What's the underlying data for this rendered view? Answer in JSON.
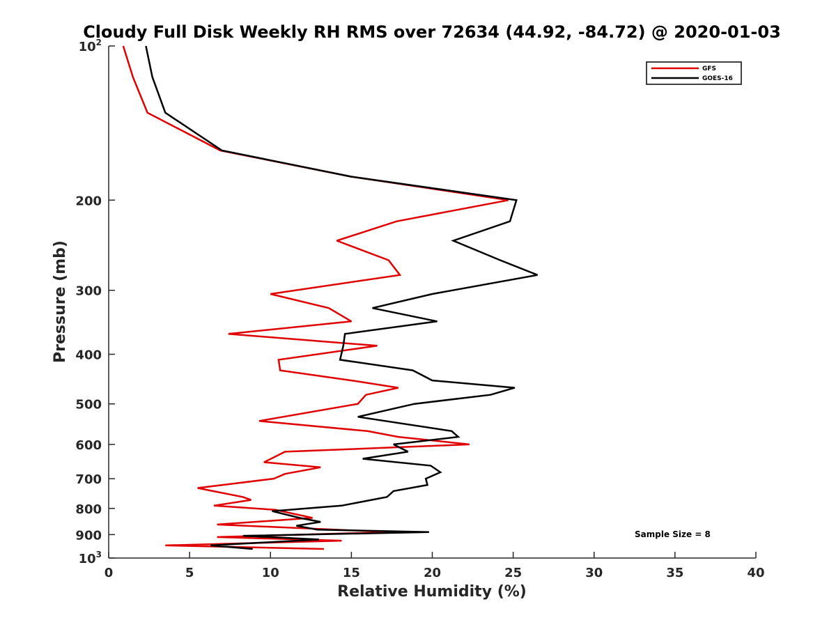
{
  "chart_data": {
    "type": "line",
    "title": "Cloudy Full Disk Weekly RH RMS over 72634 (44.92, -84.72) @ 2020-01-03",
    "xlabel": "Relative Humidity (%)",
    "ylabel": "Pressure (mb)",
    "xlim": [
      0,
      40
    ],
    "ylim": [
      100,
      1000
    ],
    "y_scale": "log",
    "y_reversed": true,
    "grid": false,
    "legend_position": "top-right",
    "x_ticks": [
      "0",
      "5",
      "10",
      "15",
      "20",
      "25",
      "30",
      "35",
      "40"
    ],
    "y_ticks": [
      {
        "value": 100,
        "base": "10",
        "exp": "2"
      },
      {
        "value": 200,
        "label": "200"
      },
      {
        "value": 300,
        "label": "300"
      },
      {
        "value": 400,
        "label": "400"
      },
      {
        "value": 500,
        "label": "500"
      },
      {
        "value": 600,
        "label": "600"
      },
      {
        "value": 700,
        "label": "700"
      },
      {
        "value": 800,
        "label": "800"
      },
      {
        "value": 900,
        "label": "900"
      },
      {
        "value": 1000,
        "base": "10",
        "exp": "3"
      }
    ],
    "annotation": "Sample Size = 8",
    "series": [
      {
        "name": "GFS",
        "color": "#e00000",
        "points": [
          [
            0.9,
            100
          ],
          [
            1.5,
            115
          ],
          [
            2.4,
            135
          ],
          [
            6.9,
            160
          ],
          [
            15.0,
            180
          ],
          [
            24.7,
            200
          ],
          [
            17.8,
            220
          ],
          [
            14.1,
            240
          ],
          [
            17.3,
            262
          ],
          [
            18.0,
            280
          ],
          [
            10.0,
            305
          ],
          [
            13.6,
            325
          ],
          [
            15.0,
            345
          ],
          [
            7.4,
            365
          ],
          [
            16.6,
            385
          ],
          [
            10.5,
            410
          ],
          [
            10.6,
            430
          ],
          [
            15.0,
            450
          ],
          [
            17.9,
            465
          ],
          [
            15.9,
            480
          ],
          [
            15.4,
            500
          ],
          [
            9.3,
            540
          ],
          [
            16.0,
            565
          ],
          [
            17.9,
            580
          ],
          [
            22.3,
            600
          ],
          [
            10.9,
            620
          ],
          [
            9.6,
            650
          ],
          [
            13.1,
            665
          ],
          [
            10.9,
            685
          ],
          [
            10.2,
            700
          ],
          [
            5.5,
            730
          ],
          [
            8.3,
            760
          ],
          [
            8.8,
            770
          ],
          [
            6.5,
            790
          ],
          [
            10.3,
            805
          ],
          [
            12.6,
            835
          ],
          [
            6.7,
            860
          ],
          [
            17.5,
            890
          ],
          [
            6.7,
            910
          ],
          [
            14.4,
            925
          ],
          [
            3.5,
            945
          ],
          [
            13.3,
            960
          ]
        ]
      },
      {
        "name": "GOES-16",
        "color": "#000000",
        "points": [
          [
            2.3,
            100
          ],
          [
            2.7,
            115
          ],
          [
            3.5,
            135
          ],
          [
            7.0,
            160
          ],
          [
            15.0,
            180
          ],
          [
            25.2,
            200
          ],
          [
            24.8,
            220
          ],
          [
            21.3,
            240
          ],
          [
            24.2,
            262
          ],
          [
            26.5,
            280
          ],
          [
            20.0,
            305
          ],
          [
            16.3,
            325
          ],
          [
            20.3,
            345
          ],
          [
            14.6,
            365
          ],
          [
            14.5,
            385
          ],
          [
            14.3,
            410
          ],
          [
            18.8,
            430
          ],
          [
            20.0,
            450
          ],
          [
            25.1,
            465
          ],
          [
            23.6,
            480
          ],
          [
            18.9,
            500
          ],
          [
            15.4,
            530
          ],
          [
            21.2,
            565
          ],
          [
            21.6,
            580
          ],
          [
            17.6,
            600
          ],
          [
            18.5,
            620
          ],
          [
            15.7,
            640
          ],
          [
            19.9,
            660
          ],
          [
            20.5,
            680
          ],
          [
            19.6,
            700
          ],
          [
            19.7,
            720
          ],
          [
            17.6,
            740
          ],
          [
            17.2,
            760
          ],
          [
            14.4,
            790
          ],
          [
            10.1,
            810
          ],
          [
            11.8,
            835
          ],
          [
            13.1,
            850
          ],
          [
            11.6,
            865
          ],
          [
            12.9,
            880
          ],
          [
            19.8,
            890
          ],
          [
            8.3,
            905
          ],
          [
            13.0,
            920
          ],
          [
            6.3,
            945
          ],
          [
            8.9,
            960
          ]
        ]
      }
    ]
  }
}
